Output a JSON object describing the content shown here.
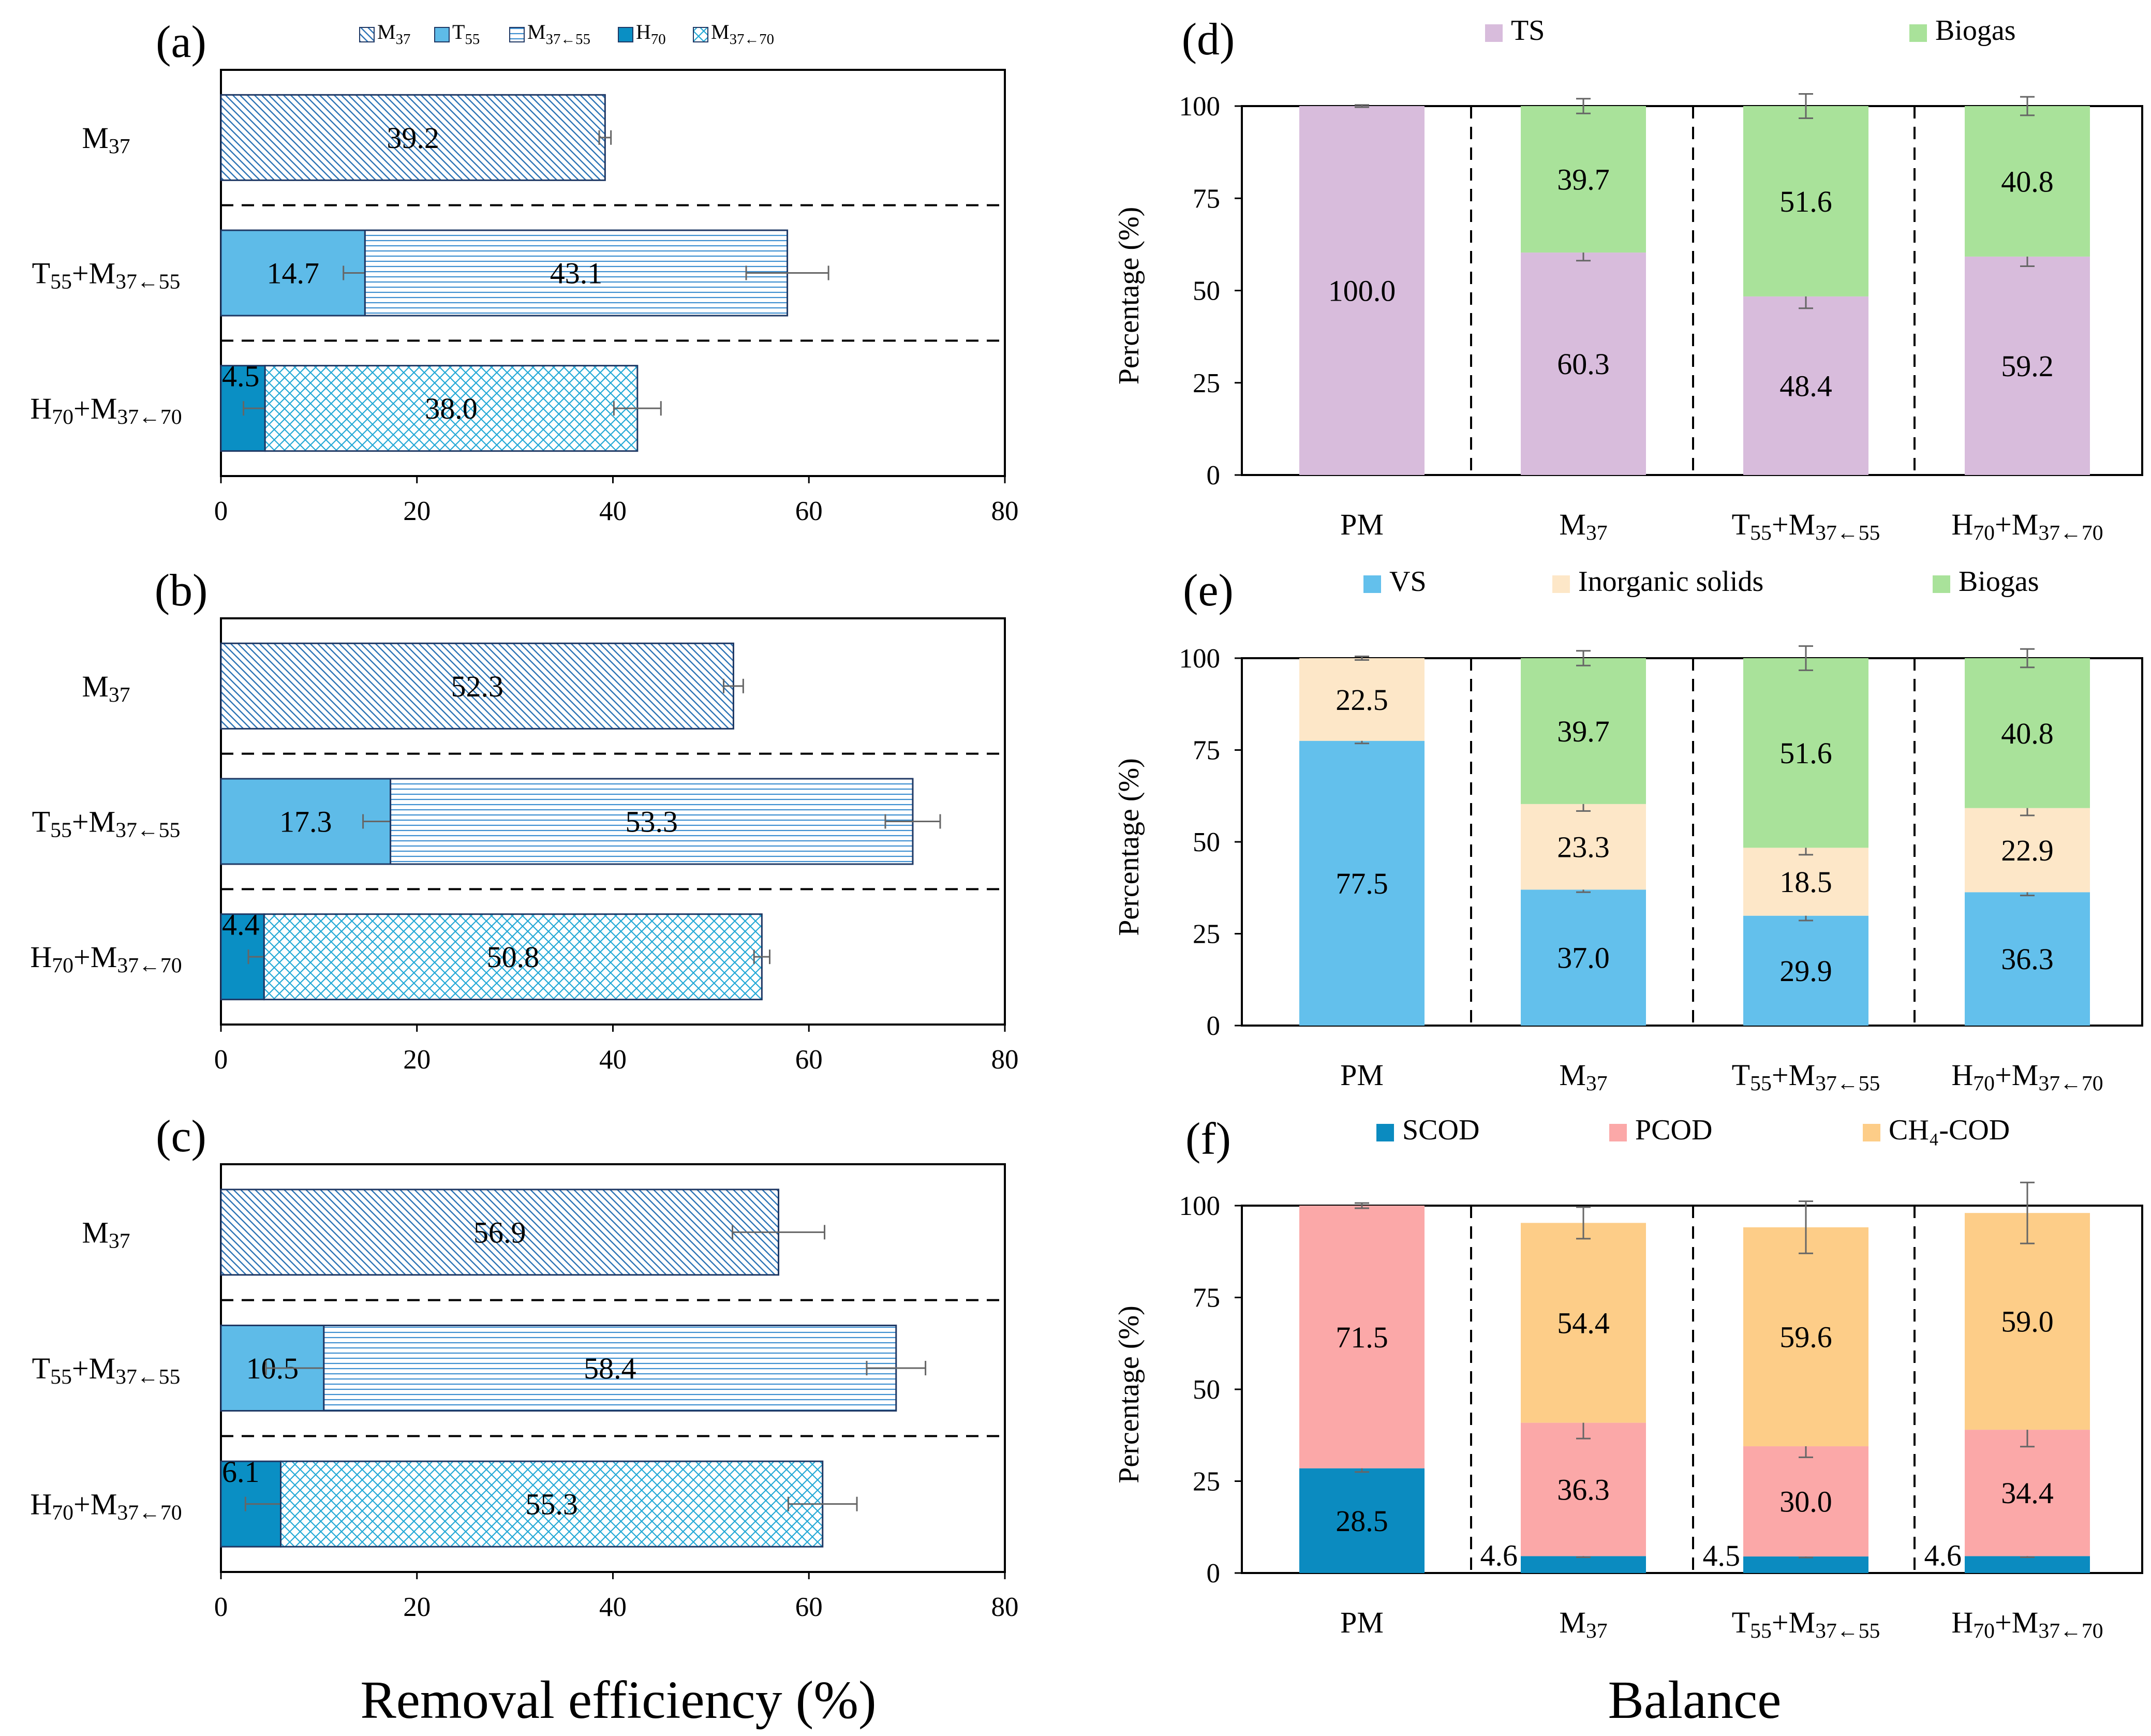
{
  "colors": {
    "M37": "#5b9bd5",
    "T55": "#5ebbe8",
    "M37_55": "#6fa8dc",
    "H70": "#0a8fc4",
    "M37_70": "#48bce0",
    "TS": "#d8bcdc",
    "Biogas": "#a9e29a",
    "VS": "#63c0ec",
    "Inorganic": "#fde7c8",
    "SCOD": "#0b8bc0",
    "PCOD": "#fba8a8",
    "CH4COD": "#fdcd88"
  },
  "labels": {
    "M37": {
      "base": "M",
      "sub": "37"
    },
    "T55": {
      "base": "T",
      "sub": "55"
    },
    "M37_55": {
      "base": "M",
      "sub": "37←55"
    },
    "H70": {
      "base": "H",
      "sub": "70"
    },
    "M37_70": {
      "base": "M",
      "sub": "37←70"
    },
    "PM": "PM",
    "plus": "+"
  },
  "axis_titles": {
    "left_x": "Removal efficiency (%)",
    "right_x": "Balance",
    "right_y": "Percentage (%)"
  },
  "chart_data": [
    {
      "panel": "(a)",
      "type": "bar",
      "orientation": "horizontal",
      "stacked": true,
      "xlim": [
        0,
        80
      ],
      "xticks": [
        0,
        20,
        40,
        60,
        80
      ],
      "legend": [
        "M37",
        "T55",
        "M37_55",
        "H70",
        "M37_70"
      ],
      "groups": [
        {
          "category": [
            "M37"
          ],
          "segments": [
            {
              "series": "M37",
              "value": 39.2,
              "error": 0.6
            }
          ]
        },
        {
          "category": [
            "T55",
            "M37_55"
          ],
          "segments": [
            {
              "series": "T55",
              "value": 14.7,
              "error": 2.2
            },
            {
              "series": "M37_55",
              "value": 43.1,
              "error": 4.2
            }
          ]
        },
        {
          "category": [
            "H70",
            "M37_70"
          ],
          "segments": [
            {
              "series": "H70",
              "value": 4.5,
              "error": 2.2
            },
            {
              "series": "M37_70",
              "value": 38.0,
              "error": 2.4
            }
          ]
        }
      ]
    },
    {
      "panel": "(b)",
      "type": "bar",
      "orientation": "horizontal",
      "stacked": true,
      "xlim": [
        0,
        80
      ],
      "xticks": [
        0,
        20,
        40,
        60,
        80
      ],
      "groups": [
        {
          "category": [
            "M37"
          ],
          "segments": [
            {
              "series": "M37",
              "value": 52.3,
              "error": 1.0
            }
          ]
        },
        {
          "category": [
            "T55",
            "M37_55"
          ],
          "segments": [
            {
              "series": "T55",
              "value": 17.3,
              "error": 2.8
            },
            {
              "series": "M37_55",
              "value": 53.3,
              "error": 2.8
            }
          ]
        },
        {
          "category": [
            "H70",
            "M37_70"
          ],
          "segments": [
            {
              "series": "H70",
              "value": 4.4,
              "error": 1.6
            },
            {
              "series": "M37_70",
              "value": 50.8,
              "error": 0.8
            }
          ]
        }
      ]
    },
    {
      "panel": "(c)",
      "type": "bar",
      "orientation": "horizontal",
      "stacked": true,
      "xlim": [
        0,
        80
      ],
      "xticks": [
        0,
        20,
        40,
        60,
        80
      ],
      "groups": [
        {
          "category": [
            "M37"
          ],
          "segments": [
            {
              "series": "M37",
              "value": 56.9,
              "error": 4.7
            }
          ]
        },
        {
          "category": [
            "T55",
            "M37_55"
          ],
          "segments": [
            {
              "series": "T55",
              "value": 10.5,
              "error": 5.9
            },
            {
              "series": "M37_55",
              "value": 58.4,
              "error": 3.0
            }
          ]
        },
        {
          "category": [
            "H70",
            "M37_70"
          ],
          "segments": [
            {
              "series": "H70",
              "value": 6.1,
              "error": 3.6
            },
            {
              "series": "M37_70",
              "value": 55.3,
              "error": 3.5
            }
          ]
        }
      ]
    },
    {
      "panel": "(d)",
      "type": "bar",
      "orientation": "vertical",
      "stacked": true,
      "ylim": [
        0,
        100
      ],
      "yticks": [
        0,
        25,
        50,
        75,
        100
      ],
      "ylabel": "Percentage (%)",
      "legend": [
        "TS",
        "Biogas"
      ],
      "categories": [
        "PM",
        "M37",
        "T55+M37_55",
        "H70+M37_70"
      ],
      "series": [
        {
          "name": "TS",
          "values": [
            100.0,
            60.3,
            48.4,
            59.2
          ],
          "errors": [
            0.3,
            2.2,
            3.2,
            2.6
          ]
        },
        {
          "name": "Biogas",
          "values": [
            null,
            39.7,
            51.6,
            40.8
          ],
          "errors": [
            null,
            2.0,
            3.3,
            2.5
          ]
        }
      ]
    },
    {
      "panel": "(e)",
      "type": "bar",
      "orientation": "vertical",
      "stacked": true,
      "ylim": [
        0,
        100
      ],
      "yticks": [
        0,
        25,
        50,
        75,
        100
      ],
      "ylabel": "Percentage (%)",
      "legend": [
        "VS",
        "Inorganic solids",
        "Biogas"
      ],
      "categories": [
        "PM",
        "M37",
        "T55+M37_55",
        "H70+M37_70"
      ],
      "series": [
        {
          "name": "VS",
          "values": [
            77.5,
            37.0,
            29.9,
            36.3
          ],
          "errors": [
            0.7,
            0.7,
            1.3,
            0.9
          ]
        },
        {
          "name": "Inorganic solids",
          "values": [
            22.5,
            23.3,
            18.5,
            22.9
          ],
          "errors": [
            0.5,
            1.9,
            1.9,
            2.0
          ]
        },
        {
          "name": "Biogas",
          "values": [
            null,
            39.7,
            51.6,
            40.8
          ],
          "errors": [
            null,
            2.0,
            3.3,
            2.5
          ]
        }
      ]
    },
    {
      "panel": "(f)",
      "type": "bar",
      "orientation": "vertical",
      "stacked": true,
      "ylim": [
        0,
        100
      ],
      "yticks": [
        0,
        25,
        50,
        75,
        100
      ],
      "ylabel": "Percentage (%)",
      "legend": [
        "SCOD",
        "PCOD",
        "CH₄-COD"
      ],
      "categories": [
        "PM",
        "M37",
        "T55+M37_55",
        "H70+M37_70"
      ],
      "series": [
        {
          "name": "SCOD",
          "values": [
            28.5,
            4.6,
            4.5,
            4.6
          ],
          "errors": [
            1.0,
            0.3,
            0.3,
            0.3
          ]
        },
        {
          "name": "PCOD",
          "values": [
            71.5,
            36.3,
            30.0,
            34.4
          ],
          "errors": [
            0.7,
            4.3,
            3.0,
            4.6
          ]
        },
        {
          "name": "CH₄-COD",
          "values": [
            null,
            54.4,
            59.6,
            59.0
          ],
          "errors": [
            null,
            4.3,
            7.1,
            8.3
          ]
        }
      ]
    }
  ]
}
